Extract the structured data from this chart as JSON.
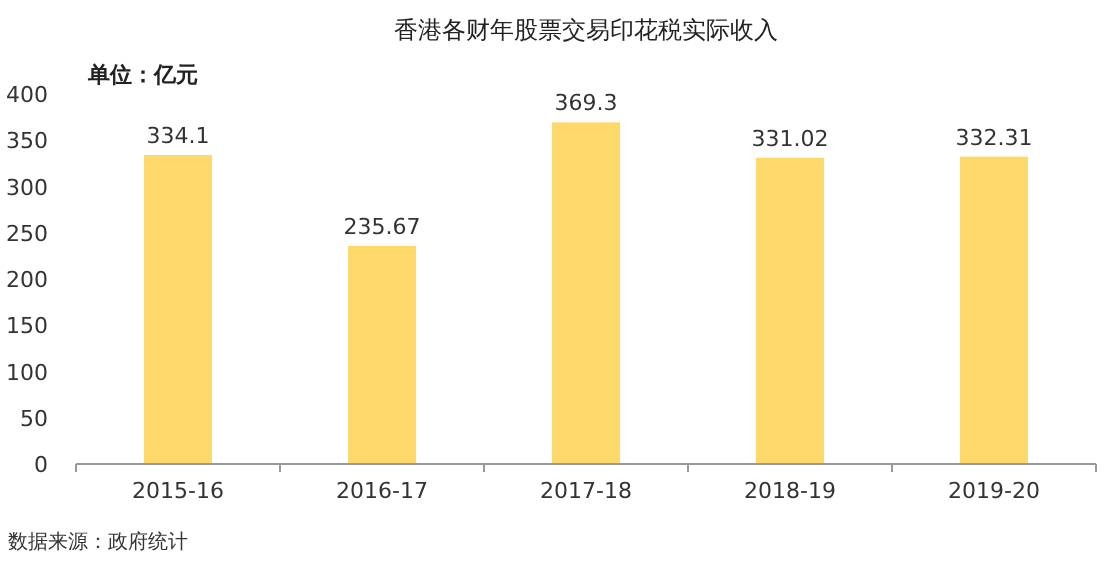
{
  "chart_data": {
    "type": "bar",
    "title": "香港各财年股票交易印花税实际收入",
    "ylabel": "单位：亿元",
    "categories": [
      "2015-16",
      "2016-17",
      "2017-18",
      "2018-19",
      "2019-20"
    ],
    "values": [
      334.1,
      235.67,
      369.3,
      331.02,
      332.31
    ],
    "color": "#fdd86a",
    "ylim": [
      0,
      400
    ],
    "yticks": [
      0,
      50,
      100,
      150,
      200,
      250,
      300,
      350,
      400
    ],
    "data_labels": true,
    "annotations": [
      "数据来源：政府统计"
    ]
  }
}
